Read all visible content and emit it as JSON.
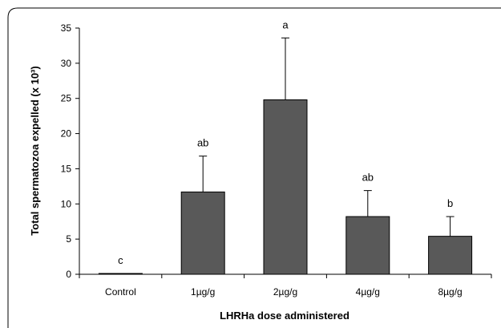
{
  "chart_data": {
    "type": "bar",
    "title": "",
    "xlabel": "LHRHa dose administered",
    "ylabel": "Total spermatozoa expelled (x 10³)",
    "categories": [
      "Control",
      "1µg/g",
      "2µg/g",
      "4µg/g",
      "8µg/g"
    ],
    "values": [
      0.1,
      11.7,
      24.8,
      8.2,
      5.4
    ],
    "error_upper": [
      0.0,
      5.1,
      8.8,
      3.7,
      2.8
    ],
    "significance_labels": [
      "c",
      "ab",
      "a",
      "ab",
      "b"
    ],
    "ylim": [
      0,
      35
    ],
    "yticks": [
      0,
      5,
      10,
      15,
      20,
      25,
      30,
      35
    ],
    "grid": false,
    "legend": "none",
    "bar_color": "#595959"
  }
}
